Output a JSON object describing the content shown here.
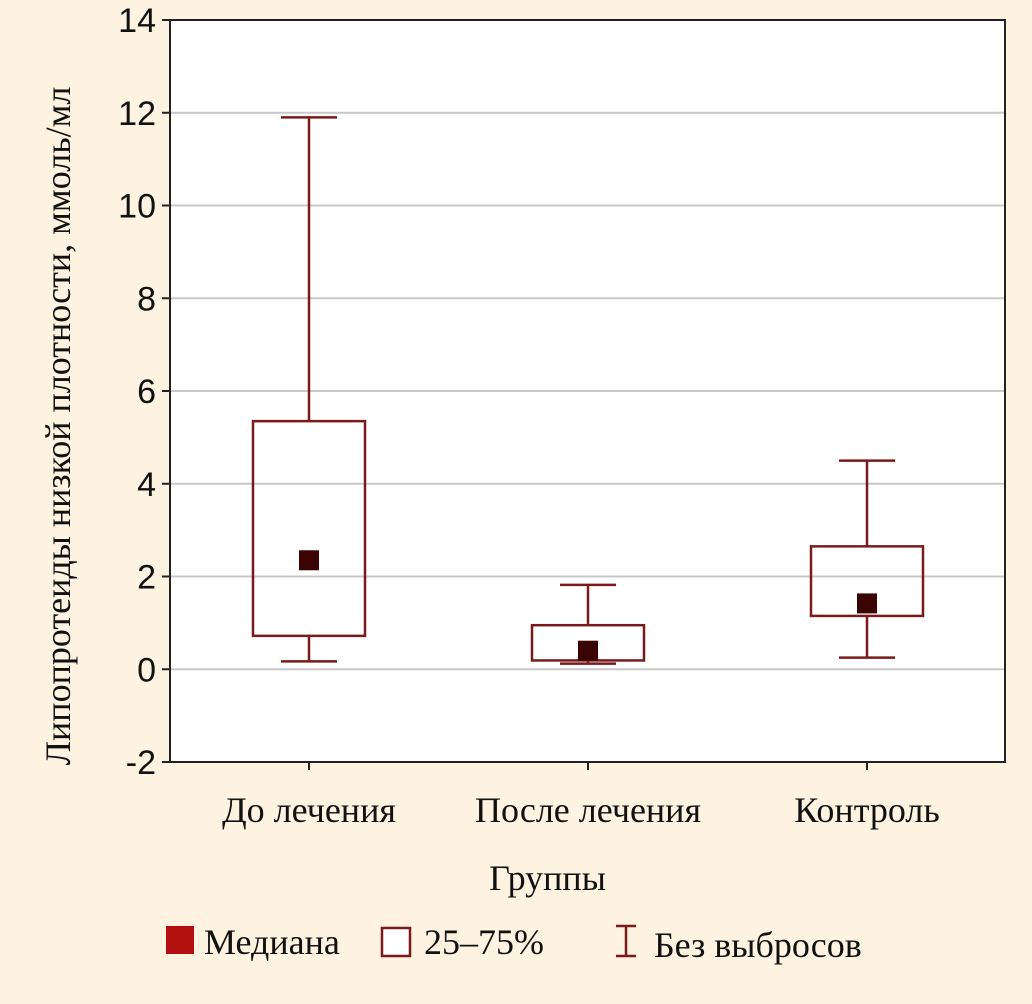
{
  "chart_data": {
    "type": "box",
    "xlabel": "Группы",
    "ylabel": "Липопротеиды низкой плотности, ммоль/мл",
    "ylim": [
      -2,
      14
    ],
    "yticks": [
      -2,
      0,
      2,
      4,
      6,
      8,
      10,
      12,
      14
    ],
    "grid": true,
    "categories": [
      "До лечения",
      "После лечения",
      "Контроль"
    ],
    "boxes": [
      {
        "category": "До лечения",
        "median": 2.35,
        "q1": 0.72,
        "q3": 5.35,
        "min": 0.17,
        "max": 11.9
      },
      {
        "category": "После лечения",
        "median": 0.4,
        "q1": 0.19,
        "q3": 0.95,
        "min": 0.12,
        "max": 1.82
      },
      {
        "category": "Контроль",
        "median": 1.42,
        "q1": 1.15,
        "q3": 2.65,
        "min": 0.25,
        "max": 4.5
      }
    ],
    "legend": {
      "position": "bottom",
      "items": [
        {
          "key": "median",
          "label": "Медиана"
        },
        {
          "key": "box",
          "label": "25–75%"
        },
        {
          "key": "whisker",
          "label": "Без выбросов"
        }
      ]
    },
    "colors": {
      "box_stroke": "#7a1a1a",
      "median_fill": "#3a0404",
      "legend_median_fill": "#b31010",
      "grid": "#c8c8c8",
      "background": "#fdf3e0",
      "plot_background": "#ffffff"
    }
  }
}
